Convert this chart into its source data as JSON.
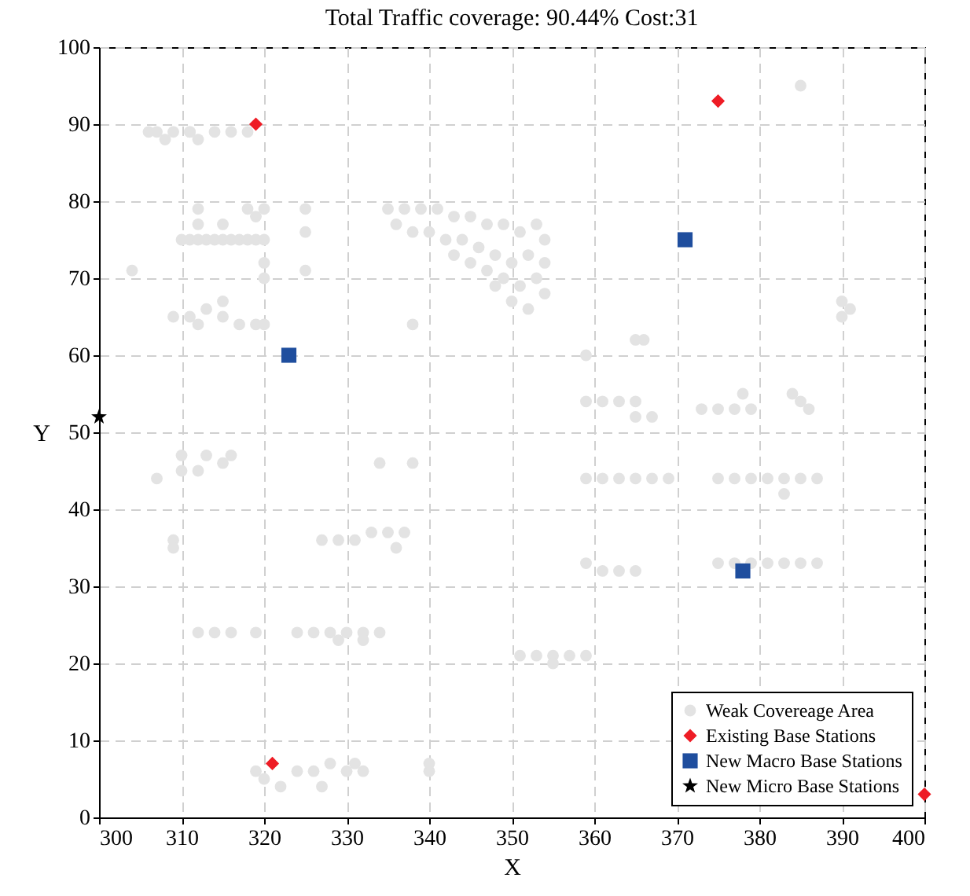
{
  "chart_data": {
    "type": "scatter",
    "title": "Total Traffic coverage: 90.44% Cost:31",
    "xlabel": "X",
    "ylabel": "Y",
    "xlim": [
      300,
      400
    ],
    "xticks": [
      300,
      310,
      320,
      330,
      340,
      350,
      360,
      370,
      380,
      390,
      400
    ],
    "ylim": [
      0,
      100
    ],
    "yticks": [
      0,
      10,
      20,
      30,
      40,
      50,
      60,
      70,
      80,
      90,
      100
    ],
    "grid": true,
    "legend": "bottom right",
    "series": [
      {
        "name": "Weak Covereage Area",
        "color": "#e3e3e3",
        "marker": "circle",
        "x": [
          306,
          307,
          308,
          309,
          311,
          312,
          314,
          316,
          318,
          311,
          310,
          311,
          312,
          313,
          314,
          315,
          316,
          317,
          318,
          319,
          320,
          312,
          312,
          315,
          318,
          319,
          320,
          325,
          325,
          304,
          320,
          320,
          325,
          309,
          311,
          313,
          315,
          315,
          317,
          319,
          312,
          320,
          338,
          335,
          337,
          339,
          341,
          343,
          345,
          347,
          349,
          351,
          353,
          336,
          338,
          340,
          342,
          344,
          346,
          348,
          350,
          352,
          354,
          345,
          347,
          349,
          351,
          353,
          350,
          352,
          354,
          348,
          343,
          354,
          385,
          390,
          390,
          391,
          365,
          366,
          359,
          359,
          361,
          363,
          365,
          365,
          367,
          373,
          375,
          377,
          379,
          378,
          384,
          385,
          386,
          359,
          361,
          363,
          365,
          367,
          369,
          375,
          377,
          379,
          381,
          383,
          385,
          387,
          383,
          359,
          361,
          363,
          365,
          375,
          377,
          379,
          381,
          383,
          385,
          387,
          351,
          353,
          355,
          357,
          359,
          355,
          307,
          310,
          310,
          312,
          313,
          315,
          316,
          334,
          338,
          309,
          309,
          327,
          329,
          331,
          333,
          335,
          337,
          336,
          312,
          314,
          316,
          319,
          324,
          326,
          328,
          330,
          332,
          334,
          329,
          332,
          319,
          320,
          322,
          324,
          326,
          328,
          330,
          331,
          332,
          327,
          340,
          340
        ],
        "values": [
          89,
          89,
          88,
          89,
          89,
          88,
          89,
          89,
          89,
          89,
          75,
          75,
          75,
          75,
          75,
          75,
          75,
          75,
          75,
          75,
          75,
          79,
          77,
          77,
          79,
          78,
          79,
          79,
          76,
          71,
          72,
          70,
          71,
          65,
          65,
          66,
          67,
          65,
          64,
          64,
          64,
          64,
          64,
          79,
          79,
          79,
          79,
          78,
          78,
          77,
          77,
          76,
          77,
          77,
          76,
          76,
          75,
          75,
          74,
          73,
          72,
          73,
          75,
          72,
          71,
          70,
          69,
          70,
          67,
          66,
          68,
          69,
          73,
          72,
          95,
          67,
          65,
          66,
          62,
          62,
          60,
          54,
          54,
          54,
          54,
          52,
          52,
          53,
          53,
          53,
          53,
          55,
          55,
          54,
          53,
          44,
          44,
          44,
          44,
          44,
          44,
          44,
          44,
          44,
          44,
          44,
          44,
          44,
          42,
          33,
          32,
          32,
          32,
          33,
          33,
          33,
          33,
          33,
          33,
          33,
          21,
          21,
          21,
          21,
          21,
          20,
          44,
          45,
          47,
          45,
          47,
          46,
          47,
          46,
          46,
          36,
          35,
          36,
          36,
          36,
          37,
          37,
          37,
          35,
          24,
          24,
          24,
          24,
          24,
          24,
          24,
          24,
          24,
          24,
          23,
          23,
          6,
          5,
          4,
          6,
          6,
          7,
          6,
          7,
          6,
          4,
          6,
          7
        ]
      },
      {
        "name": "Existing Base Stations",
        "color": "#ee1c25",
        "marker": "diamond",
        "x": [
          319,
          375,
          321,
          400
        ],
        "values": [
          90,
          93,
          7,
          3
        ]
      },
      {
        "name": "New Macro Base Stations",
        "color": "#1f4e9e",
        "marker": "square",
        "x": [
          323,
          371,
          378
        ],
        "values": [
          60,
          75,
          32
        ]
      },
      {
        "name": "New Micro Base Stations",
        "color": "#000000",
        "marker": "star",
        "x": [
          300
        ],
        "values": [
          52
        ]
      }
    ]
  }
}
